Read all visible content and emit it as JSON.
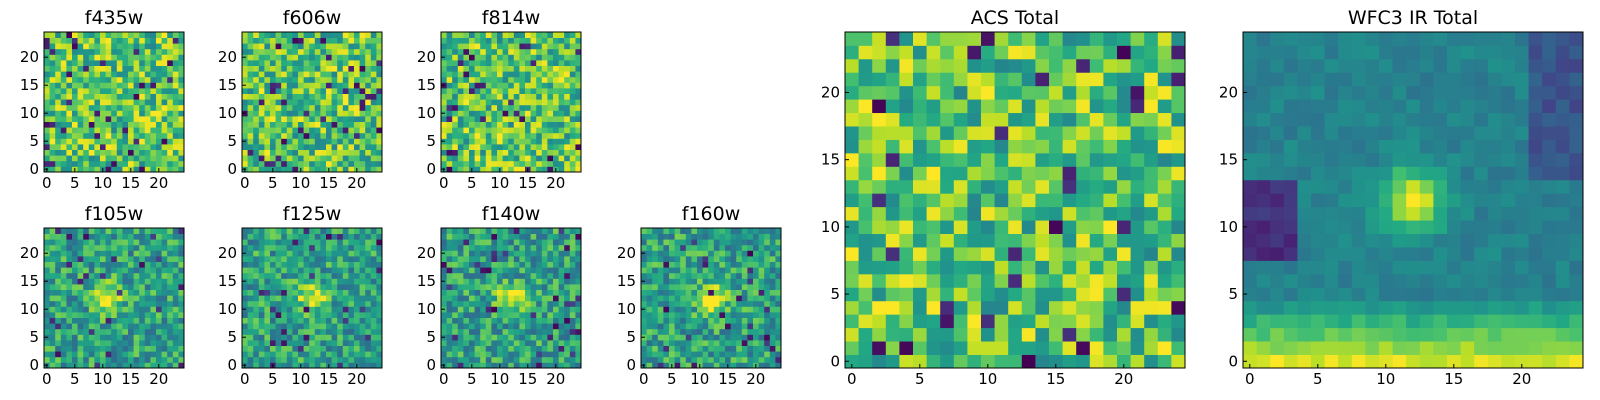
{
  "figure": {
    "background": "#ffffff",
    "colormap": "viridis"
  },
  "chart_data": [
    {
      "type": "heatmap",
      "title": "f435w",
      "grid_size": 25,
      "xticks": [
        0,
        5,
        10,
        15,
        20
      ],
      "yticks": [
        0,
        5,
        10,
        15,
        20
      ],
      "xlim": [
        0,
        25
      ],
      "ylim": [
        0,
        25
      ],
      "pattern": "noise",
      "seed": 11
    },
    {
      "type": "heatmap",
      "title": "f606w",
      "grid_size": 25,
      "xticks": [
        0,
        5,
        10,
        15,
        20
      ],
      "yticks": [
        0,
        5,
        10,
        15,
        20
      ],
      "xlim": [
        0,
        25
      ],
      "ylim": [
        0,
        25
      ],
      "pattern": "noise",
      "seed": 23
    },
    {
      "type": "heatmap",
      "title": "f814w",
      "grid_size": 25,
      "xticks": [
        0,
        5,
        10,
        15,
        20
      ],
      "yticks": [
        0,
        5,
        10,
        15,
        20
      ],
      "xlim": [
        0,
        25
      ],
      "ylim": [
        0,
        25
      ],
      "pattern": "noise",
      "seed": 37
    },
    {
      "type": "heatmap",
      "title": "f105w",
      "grid_size": 25,
      "xticks": [
        0,
        5,
        10,
        15,
        20
      ],
      "yticks": [
        0,
        5,
        10,
        15,
        20
      ],
      "xlim": [
        0,
        25
      ],
      "ylim": [
        0,
        25
      ],
      "pattern": "source",
      "source_center": [
        11,
        12
      ],
      "seed": 41
    },
    {
      "type": "heatmap",
      "title": "f125w",
      "grid_size": 25,
      "xticks": [
        0,
        5,
        10,
        15,
        20
      ],
      "yticks": [
        0,
        5,
        10,
        15,
        20
      ],
      "xlim": [
        0,
        25
      ],
      "ylim": [
        0,
        25
      ],
      "pattern": "source",
      "source_center": [
        12,
        12
      ],
      "seed": 53
    },
    {
      "type": "heatmap",
      "title": "f140w",
      "grid_size": 25,
      "xticks": [
        0,
        5,
        10,
        15,
        20
      ],
      "yticks": [
        0,
        5,
        10,
        15,
        20
      ],
      "xlim": [
        0,
        25
      ],
      "ylim": [
        0,
        25
      ],
      "pattern": "source",
      "source_center": [
        12,
        12
      ],
      "seed": 67
    },
    {
      "type": "heatmap",
      "title": "f160w",
      "grid_size": 25,
      "xticks": [
        0,
        5,
        10,
        15,
        20
      ],
      "yticks": [
        0,
        5,
        10,
        15,
        20
      ],
      "xlim": [
        0,
        25
      ],
      "ylim": [
        0,
        25
      ],
      "pattern": "source",
      "source_center": [
        12,
        12
      ],
      "seed": 79
    },
    {
      "type": "heatmap",
      "title": "ACS Total",
      "grid_size": 25,
      "xticks": [
        0,
        5,
        10,
        15,
        20
      ],
      "yticks": [
        0,
        5,
        10,
        15,
        20
      ],
      "xlim": [
        0,
        25
      ],
      "ylim": [
        0,
        25
      ],
      "pattern": "noise",
      "seed": 97
    },
    {
      "type": "heatmap",
      "title": "WFC3 IR Total",
      "grid_size": 25,
      "xticks": [
        0,
        5,
        10,
        15,
        20
      ],
      "yticks": [
        0,
        5,
        10,
        15,
        20
      ],
      "xlim": [
        0,
        25
      ],
      "ylim": [
        0,
        25
      ],
      "pattern": "smooth-source",
      "source_center": [
        12,
        12
      ],
      "seed": 101
    }
  ]
}
